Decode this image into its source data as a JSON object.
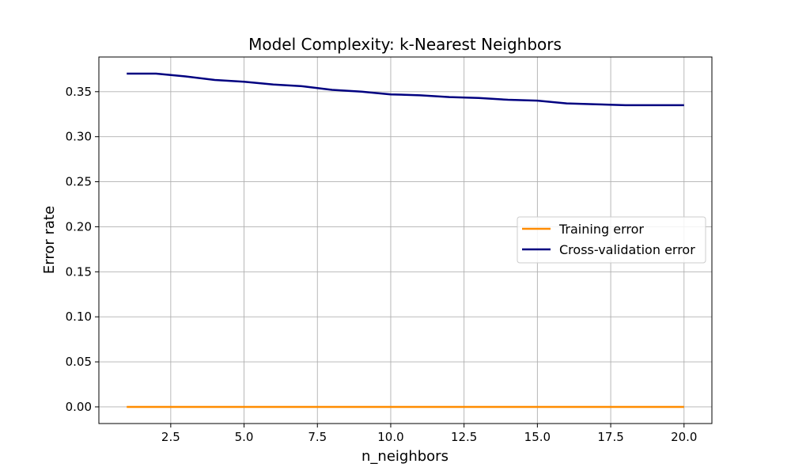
{
  "chart_data": {
    "type": "line",
    "title": "Model Complexity: k-Nearest Neighbors",
    "xlabel": "n_neighbors",
    "ylabel": "Error rate",
    "xlim": [
      0.05,
      20.95
    ],
    "ylim": [
      -0.0185,
      0.3885
    ],
    "xticks": [
      2.5,
      5.0,
      7.5,
      10.0,
      12.5,
      15.0,
      17.5,
      20.0
    ],
    "xtick_labels": [
      "2.5",
      "5.0",
      "7.5",
      "10.0",
      "12.5",
      "15.0",
      "17.5",
      "20.0"
    ],
    "yticks": [
      0.0,
      0.05,
      0.1,
      0.15,
      0.2,
      0.25,
      0.3,
      0.35
    ],
    "ytick_labels": [
      "0.00",
      "0.05",
      "0.10",
      "0.15",
      "0.20",
      "0.25",
      "0.30",
      "0.35"
    ],
    "grid": true,
    "legend_position": "center-right",
    "x": [
      1,
      2,
      3,
      4,
      5,
      6,
      7,
      8,
      9,
      10,
      11,
      12,
      13,
      14,
      15,
      16,
      17,
      18,
      19,
      20
    ],
    "series": [
      {
        "name": "Training error",
        "color": "#ff8c00",
        "values": [
          0,
          0,
          0,
          0,
          0,
          0,
          0,
          0,
          0,
          0,
          0,
          0,
          0,
          0,
          0,
          0,
          0,
          0,
          0,
          0
        ]
      },
      {
        "name": "Cross-validation error",
        "color": "#000080",
        "values": [
          0.37,
          0.37,
          0.367,
          0.363,
          0.361,
          0.358,
          0.356,
          0.352,
          0.35,
          0.347,
          0.346,
          0.344,
          0.343,
          0.341,
          0.34,
          0.337,
          0.336,
          0.335,
          0.335,
          0.335
        ]
      }
    ]
  }
}
